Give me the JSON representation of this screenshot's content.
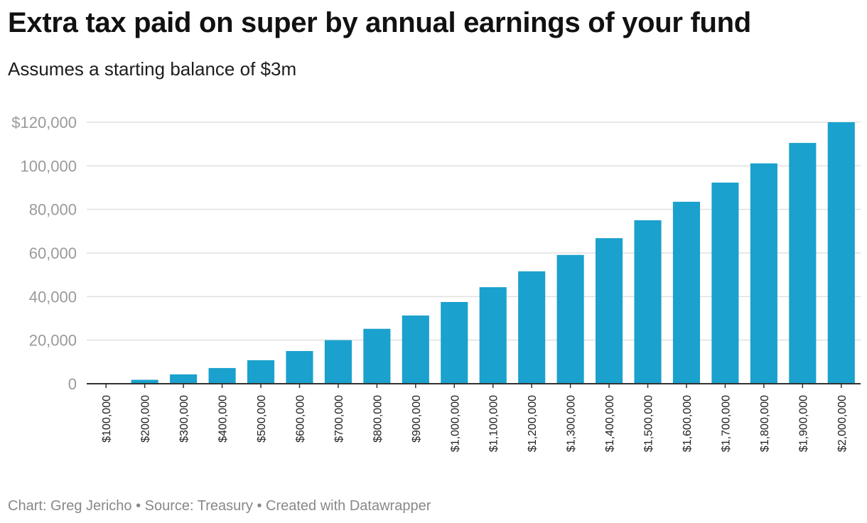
{
  "chart_data": {
    "type": "bar",
    "title": "Extra tax paid on super by annual earnings of your fund",
    "subtitle": "Assumes a starting balance of $3m",
    "categories": [
      "$100,000",
      "$200,000",
      "$300,000",
      "$400,000",
      "$500,000",
      "$600,000",
      "$700,000",
      "$800,000",
      "$900,000",
      "$1,000,000",
      "$1,100,000",
      "$1,200,000",
      "$1,300,000",
      "$1,400,000",
      "$1,500,000",
      "$1,600,000",
      "$1,700,000",
      "$1,800,000",
      "$1,900,000",
      "$2,000,000"
    ],
    "values": [
      0,
      1800,
      4300,
      7200,
      10800,
      15000,
      20000,
      25200,
      31300,
      37500,
      44300,
      51600,
      59100,
      66800,
      75000,
      83500,
      92300,
      101100,
      110500,
      120000
    ],
    "y_ticks": [
      0,
      20000,
      40000,
      60000,
      80000,
      100000,
      120000
    ],
    "y_tick_labels": [
      "0",
      "20,000",
      "40,000",
      "60,000",
      "80,000",
      "100,000",
      "$120,000"
    ],
    "ylim": [
      0,
      120000
    ],
    "xlabel": "",
    "ylabel": "",
    "grid": true,
    "colors": {
      "bar": "#1aa1cd",
      "grid": "#e0e0e0",
      "tick_label": "#9a9a9a",
      "axis": "#333333"
    },
    "footer": "Chart: Greg Jericho • Source: Treasury • Created with Datawrapper"
  }
}
